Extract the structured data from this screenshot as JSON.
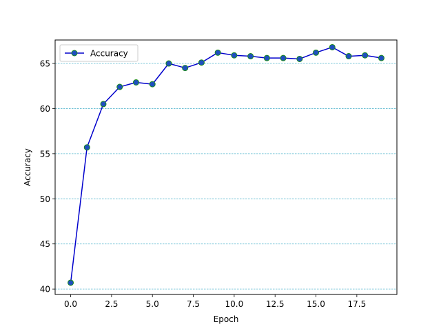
{
  "chart_data": {
    "type": "line",
    "title": "",
    "xlabel": "Epoch",
    "ylabel": "Accuracy",
    "xlim": [
      -0.95,
      19.95
    ],
    "ylim": [
      39.4,
      67.6
    ],
    "x_ticks": [
      0.0,
      2.5,
      5.0,
      7.5,
      10.0,
      12.5,
      15.0,
      17.5
    ],
    "x_tick_labels": [
      "0.0",
      "2.5",
      "5.0",
      "7.5",
      "10.0",
      "12.5",
      "15.0",
      "17.5"
    ],
    "y_ticks": [
      40,
      45,
      50,
      55,
      60,
      65
    ],
    "y_tick_labels": [
      "40",
      "45",
      "50",
      "55",
      "60",
      "65"
    ],
    "grid": "horizontal dashed",
    "grid_color": "#5bb8cf",
    "legend_position": "upper-left",
    "series": [
      {
        "name": "Accuracy",
        "line_color": "#0000cc",
        "marker_face_color": "#1f4fbf",
        "marker_edge_color": "#1a8a1a",
        "x": [
          0,
          1,
          2,
          3,
          4,
          5,
          6,
          7,
          8,
          9,
          10,
          11,
          12,
          13,
          14,
          15,
          16,
          17,
          18,
          19
        ],
        "y": [
          40.7,
          55.7,
          60.5,
          62.4,
          62.9,
          62.7,
          65.0,
          64.5,
          65.1,
          66.2,
          65.9,
          65.8,
          65.6,
          65.6,
          65.5,
          66.2,
          66.8,
          65.8,
          65.9,
          65.6
        ]
      }
    ]
  }
}
